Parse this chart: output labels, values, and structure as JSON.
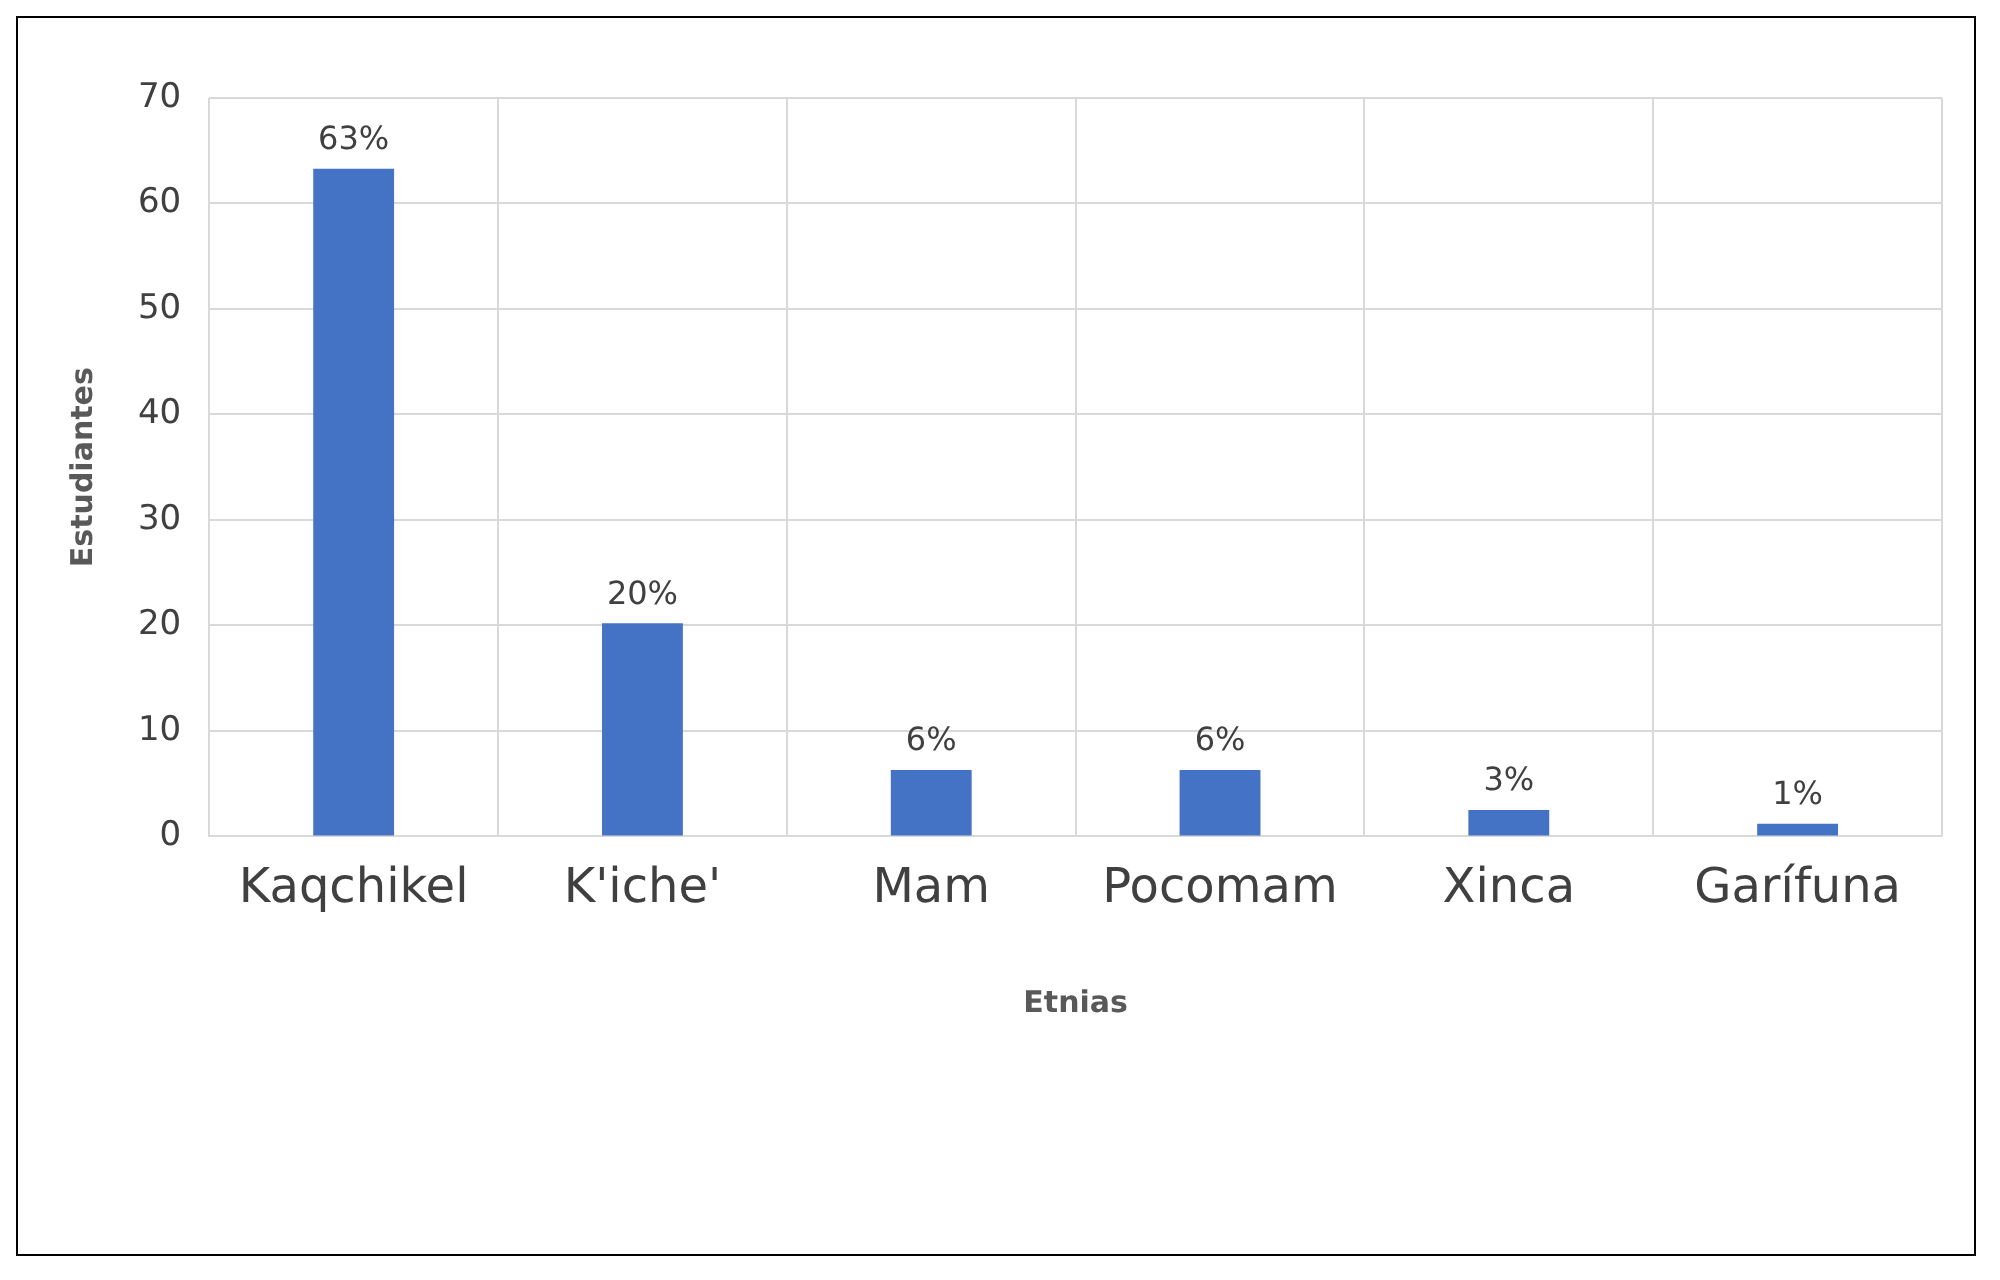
{
  "chart_data": {
    "type": "bar",
    "xlabel": "Etnias",
    "ylabel": "Estudiantes",
    "categories": [
      "Kaqchikel",
      "K'iche'",
      "Mam",
      "Pocomam",
      "Xinca",
      "Garífuna"
    ],
    "series": [
      {
        "color": "#4472c4",
        "values": [
          63.3,
          20.2,
          6.3,
          6.3,
          2.5,
          1.2
        ],
        "value_labels": [
          "63%",
          "20%",
          "6%",
          "6%",
          "3%",
          "1%"
        ]
      }
    ],
    "ylim": [
      0,
      70
    ],
    "yticks": [
      0,
      10,
      20,
      30,
      40,
      50,
      60,
      70
    ],
    "grid": true,
    "legend": false
  }
}
